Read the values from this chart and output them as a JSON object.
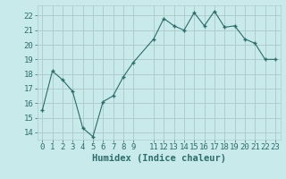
{
  "x": [
    0,
    1,
    2,
    3,
    4,
    5,
    6,
    7,
    8,
    9,
    11,
    12,
    13,
    14,
    15,
    16,
    17,
    18,
    19,
    20,
    21,
    22,
    23
  ],
  "y": [
    15.5,
    18.2,
    17.6,
    16.8,
    14.3,
    13.7,
    16.1,
    16.5,
    17.8,
    18.8,
    20.4,
    21.8,
    21.3,
    21.0,
    22.2,
    21.3,
    22.3,
    21.2,
    21.3,
    20.4,
    20.1,
    19.0,
    19.0
  ],
  "xlabel": "Humidex (Indice chaleur)",
  "xticks": [
    0,
    1,
    2,
    3,
    4,
    5,
    6,
    7,
    8,
    9,
    11,
    12,
    13,
    14,
    15,
    16,
    17,
    18,
    19,
    20,
    21,
    22,
    23
  ],
  "yticks": [
    14,
    15,
    16,
    17,
    18,
    19,
    20,
    21,
    22
  ],
  "ylim": [
    13.5,
    22.7
  ],
  "xlim": [
    -0.5,
    23.5
  ],
  "line_color": "#2e6b6b",
  "marker": "+",
  "bg_color": "#c8eaea",
  "grid_color": "#b0cccc",
  "label_fontsize": 7.5,
  "tick_fontsize": 6.5
}
